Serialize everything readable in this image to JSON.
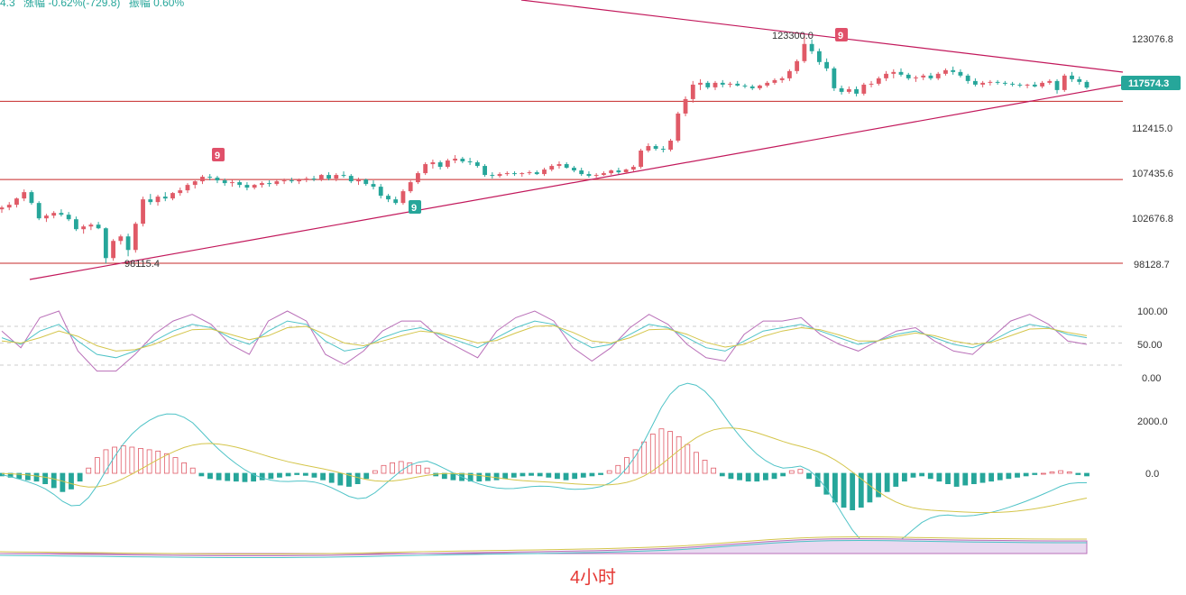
{
  "header": {
    "price_fragment": "4.3",
    "change_text": "涨幅 -0.62%(-729.8)",
    "amplitude_text": "振幅 0.60%"
  },
  "caption": "4小时",
  "colors": {
    "up": "#e05a67",
    "down": "#26a69a",
    "trendline": "#c2185b",
    "support": "#c62828",
    "price_tag": "#26a69a",
    "signal_up": "#e0506a",
    "signal_down": "#26a69a"
  },
  "chart_data": [
    {
      "type": "candlestick",
      "panel": "price",
      "y_ticks": [
        "123076.8",
        "112415.0",
        "107435.6",
        "102676.8",
        "98128.7"
      ],
      "current_price": "117574.3",
      "annotations": {
        "high_label": "123300.0",
        "low_label": "98115.4",
        "signal_top_left": "9",
        "signal_mid": "9",
        "signal_bottom": "9"
      },
      "horizontal_levels": [
        116050,
        107400,
        98128.7
      ],
      "candles_ohlc": [
        [
          104100,
          104500,
          103700,
          104300
        ],
        [
          104300,
          104900,
          104000,
          104600
        ],
        [
          104600,
          105400,
          104300,
          105300
        ],
        [
          105300,
          106300,
          105000,
          106000
        ],
        [
          106000,
          106200,
          104600,
          104800
        ],
        [
          104800,
          105000,
          102900,
          103100
        ],
        [
          103100,
          103600,
          102700,
          103400
        ],
        [
          103400,
          103900,
          103100,
          103700
        ],
        [
          103700,
          104100,
          103300,
          103500
        ],
        [
          103500,
          103800,
          102800,
          103000
        ],
        [
          103000,
          103300,
          101700,
          101900
        ],
        [
          101900,
          102400,
          101400,
          102200
        ],
        [
          102200,
          102600,
          101800,
          102400
        ],
        [
          102400,
          102700,
          101900,
          102000
        ],
        [
          102000,
          102100,
          98115.4,
          98700
        ],
        [
          98700,
          100800,
          98400,
          100600
        ],
        [
          100600,
          101300,
          100200,
          101100
        ],
        [
          101100,
          101400,
          98900,
          99600
        ],
        [
          99600,
          102700,
          99300,
          102500
        ],
        [
          102500,
          105500,
          102200,
          105200
        ],
        [
          105200,
          105800,
          104600,
          104900
        ],
        [
          104900,
          105700,
          104500,
          105500
        ],
        [
          105500,
          106000,
          105000,
          105300
        ],
        [
          105300,
          106000,
          105100,
          105900
        ],
        [
          105900,
          106500,
          105600,
          106200
        ],
        [
          106200,
          107000,
          105900,
          106800
        ],
        [
          106800,
          107300,
          106400,
          107200
        ],
        [
          107200,
          107900,
          106900,
          107700
        ],
        [
          107700,
          108000,
          107300,
          107600
        ],
        [
          107600,
          107800,
          107000,
          107300
        ],
        [
          107300,
          107500,
          106700,
          107000
        ],
        [
          107000,
          107400,
          106600,
          107100
        ],
        [
          107100,
          107300,
          106500,
          106800
        ],
        [
          106800,
          107100,
          106200,
          106500
        ],
        [
          106500,
          106900,
          106300,
          106800
        ],
        [
          106800,
          107200,
          106500,
          107000
        ],
        [
          107000,
          107300,
          106600,
          106900
        ],
        [
          106900,
          107400,
          106700,
          107200
        ],
        [
          107200,
          107500,
          106900,
          107300
        ],
        [
          107300,
          107600,
          107000,
          107200
        ],
        [
          107200,
          107500,
          106900,
          107400
        ],
        [
          107400,
          107700,
          107100,
          107500
        ],
        [
          107500,
          107800,
          107200,
          107400
        ],
        [
          107400,
          108000,
          107200,
          107900
        ],
        [
          107900,
          108200,
          107300,
          107500
        ],
        [
          107500,
          108100,
          107200,
          107900
        ],
        [
          107900,
          108300,
          107600,
          107800
        ],
        [
          107800,
          108000,
          107000,
          107200
        ],
        [
          107200,
          107600,
          106800,
          107400
        ],
        [
          107400,
          107500,
          106700,
          106900
        ],
        [
          106900,
          107300,
          106300,
          106600
        ],
        [
          106600,
          106900,
          105300,
          105600
        ],
        [
          105600,
          105800,
          104900,
          105200
        ],
        [
          105200,
          105500,
          104600,
          104800
        ],
        [
          104800,
          106300,
          104600,
          106100
        ],
        [
          106100,
          107300,
          105900,
          107100
        ],
        [
          107100,
          108300,
          106900,
          108100
        ],
        [
          108100,
          109300,
          107900,
          109100
        ],
        [
          109100,
          109600,
          108600,
          109300
        ],
        [
          109300,
          109500,
          108500,
          108800
        ],
        [
          108800,
          109700,
          108600,
          109500
        ],
        [
          109500,
          110100,
          109200,
          109700
        ],
        [
          109700,
          109900,
          109200,
          109400
        ],
        [
          109400,
          109800,
          109000,
          109300
        ],
        [
          109300,
          109500,
          108700,
          108900
        ],
        [
          108900,
          109100,
          107700,
          107900
        ],
        [
          107900,
          108200,
          107500,
          107800
        ],
        [
          107800,
          108200,
          107600,
          108000
        ],
        [
          108000,
          108300,
          107800,
          108100
        ],
        [
          108100,
          108300,
          107800,
          108000
        ],
        [
          108000,
          108200,
          107700,
          108100
        ],
        [
          108100,
          108400,
          107900,
          108200
        ],
        [
          108200,
          108400,
          107900,
          108000
        ],
        [
          108000,
          108700,
          107800,
          108500
        ],
        [
          108500,
          109100,
          108300,
          108900
        ],
        [
          108900,
          109400,
          108600,
          109100
        ],
        [
          109100,
          109300,
          108600,
          108700
        ],
        [
          108700,
          108900,
          108200,
          108400
        ],
        [
          108400,
          108700,
          107800,
          108000
        ],
        [
          108000,
          108300,
          107600,
          107800
        ],
        [
          107800,
          108100,
          107600,
          107900
        ],
        [
          107900,
          108300,
          107800,
          108100
        ],
        [
          108100,
          108500,
          107900,
          108400
        ],
        [
          108400,
          108700,
          108000,
          108200
        ],
        [
          108200,
          108600,
          108000,
          108500
        ],
        [
          108500,
          109000,
          108300,
          108800
        ],
        [
          108800,
          110800,
          108600,
          110600
        ],
        [
          110600,
          111400,
          110400,
          111100
        ],
        [
          111100,
          111300,
          110600,
          110800
        ],
        [
          110800,
          111100,
          110400,
          110700
        ],
        [
          110700,
          111900,
          110500,
          111700
        ],
        [
          111700,
          114900,
          111500,
          114700
        ],
        [
          114700,
          116600,
          114400,
          116300
        ],
        [
          116300,
          118300,
          115900,
          117900
        ],
        [
          117900,
          118500,
          117300,
          118100
        ],
        [
          118100,
          118300,
          117400,
          117600
        ],
        [
          117600,
          118300,
          117300,
          118100
        ],
        [
          118100,
          118400,
          117600,
          117900
        ],
        [
          117900,
          118200,
          117600,
          118000
        ],
        [
          118000,
          118300,
          117700,
          117800
        ],
        [
          117800,
          118000,
          117500,
          117700
        ],
        [
          117700,
          117900,
          117300,
          117500
        ],
        [
          117500,
          117900,
          117300,
          117800
        ],
        [
          117800,
          118300,
          117600,
          118100
        ],
        [
          118100,
          118600,
          117900,
          118400
        ],
        [
          118400,
          118800,
          118100,
          118600
        ],
        [
          118600,
          119600,
          118300,
          119400
        ],
        [
          119400,
          120700,
          119100,
          120500
        ],
        [
          120500,
          123300,
          120300,
          122400
        ],
        [
          122400,
          122900,
          121300,
          121600
        ],
        [
          121600,
          121900,
          120100,
          120400
        ],
        [
          120400,
          120800,
          119400,
          119700
        ],
        [
          119700,
          119900,
          117200,
          117500
        ],
        [
          117500,
          117800,
          116800,
          117100
        ],
        [
          117100,
          117700,
          116900,
          117400
        ],
        [
          117400,
          117700,
          116600,
          116900
        ],
        [
          116900,
          118100,
          116700,
          117900
        ],
        [
          117900,
          118300,
          117600,
          118000
        ],
        [
          118000,
          118800,
          117800,
          118600
        ],
        [
          118600,
          119400,
          118300,
          119100
        ],
        [
          119100,
          119600,
          118600,
          119300
        ],
        [
          119300,
          119700,
          118800,
          119000
        ],
        [
          119000,
          119200,
          118400,
          118600
        ],
        [
          118600,
          118900,
          118200,
          118700
        ],
        [
          118700,
          119100,
          118400,
          118900
        ],
        [
          118900,
          119200,
          118400,
          118600
        ],
        [
          118600,
          119300,
          118400,
          119100
        ],
        [
          119100,
          119700,
          118900,
          119500
        ],
        [
          119500,
          119900,
          119000,
          119300
        ],
        [
          119300,
          119600,
          118700,
          118900
        ],
        [
          118900,
          119100,
          118000,
          118300
        ],
        [
          118300,
          118600,
          117700,
          117900
        ],
        [
          117900,
          118300,
          117600,
          118100
        ],
        [
          118100,
          118400,
          117800,
          118200
        ],
        [
          118200,
          118400,
          117900,
          118100
        ],
        [
          118100,
          118300,
          117800,
          118000
        ],
        [
          118000,
          118200,
          117700,
          117900
        ],
        [
          117900,
          118100,
          117600,
          117800
        ],
        [
          117800,
          118000,
          117500,
          117900
        ],
        [
          117900,
          118200,
          117600,
          117700
        ],
        [
          117700,
          118300,
          117500,
          118100
        ],
        [
          118100,
          118500,
          117900,
          118300
        ],
        [
          118300,
          118500,
          116900,
          117300
        ],
        [
          117300,
          119100,
          117100,
          118900
        ],
        [
          118900,
          119300,
          118200,
          118500
        ],
        [
          118500,
          118800,
          117900,
          118200
        ],
        [
          118200,
          118400,
          117400,
          117574.3
        ]
      ]
    },
    {
      "type": "line",
      "panel": "kdj",
      "y_ticks": [
        "100.00",
        "50.00",
        "0.00"
      ],
      "ylim": [
        0,
        100
      ],
      "k_values": [
        60,
        50,
        70,
        80,
        55,
        35,
        30,
        40,
        55,
        70,
        80,
        75,
        60,
        50,
        70,
        85,
        80,
        55,
        40,
        45,
        60,
        70,
        75,
        65,
        55,
        45,
        60,
        75,
        85,
        80,
        60,
        45,
        50,
        65,
        80,
        75,
        60,
        45,
        40,
        55,
        70,
        75,
        80,
        70,
        60,
        50,
        55,
        65,
        70,
        60,
        50,
        45,
        55,
        70,
        80,
        75,
        65,
        60
      ],
      "d_values": [
        55,
        52,
        60,
        70,
        62,
        48,
        40,
        42,
        50,
        62,
        72,
        73,
        65,
        57,
        63,
        75,
        77,
        65,
        52,
        48,
        55,
        63,
        70,
        67,
        60,
        52,
        56,
        67,
        77,
        78,
        68,
        55,
        52,
        60,
        72,
        73,
        65,
        53,
        46,
        50,
        62,
        70,
        75,
        72,
        64,
        55,
        55,
        62,
        67,
        63,
        55,
        50,
        53,
        63,
        73,
        74,
        68,
        63
      ],
      "j_values": [
        70,
        45,
        90,
        100,
        40,
        10,
        10,
        35,
        65,
        85,
        95,
        80,
        50,
        35,
        85,
        100,
        85,
        35,
        20,
        40,
        70,
        85,
        85,
        60,
        45,
        30,
        70,
        90,
        100,
        85,
        45,
        25,
        45,
        75,
        95,
        80,
        50,
        30,
        25,
        65,
        85,
        85,
        90,
        65,
        50,
        40,
        55,
        70,
        75,
        55,
        40,
        35,
        60,
        85,
        95,
        80,
        55,
        50
      ]
    },
    {
      "type": "bar",
      "panel": "macd",
      "y_ticks": [
        "2000.0",
        "0.0"
      ],
      "histogram": [
        -100,
        -150,
        -200,
        -250,
        -300,
        -400,
        -550,
        -700,
        -600,
        -300,
        200,
        600,
        900,
        1000,
        1050,
        1000,
        950,
        900,
        850,
        750,
        600,
        400,
        200,
        -100,
        -200,
        -250,
        -280,
        -300,
        -320,
        -300,
        -250,
        -200,
        -150,
        -100,
        -50,
        -80,
        -150,
        -250,
        -350,
        -450,
        -500,
        -400,
        -200,
        100,
        300,
        400,
        450,
        400,
        300,
        200,
        -100,
        -200,
        -250,
        -280,
        -300,
        -300,
        -280,
        -250,
        -200,
        -150,
        -100,
        -80,
        -100,
        -150,
        -200,
        -250,
        -200,
        -150,
        -100,
        -50,
        100,
        300,
        600,
        900,
        1200,
        1500,
        1700,
        1600,
        1400,
        1100,
        800,
        500,
        200,
        -100,
        -200,
        -250,
        -300,
        -300,
        -250,
        -200,
        -100,
        100,
        150,
        -200,
        -500,
        -800,
        -1100,
        -1300,
        -1400,
        -1300,
        -1100,
        -900,
        -700,
        -500,
        -300,
        -150,
        -100,
        -200,
        -300,
        -400,
        -500,
        -450,
        -400,
        -350,
        -300,
        -250,
        -200,
        -150,
        -100,
        -50,
        0,
        50,
        100,
        50,
        -50,
        -100
      ]
    }
  ]
}
